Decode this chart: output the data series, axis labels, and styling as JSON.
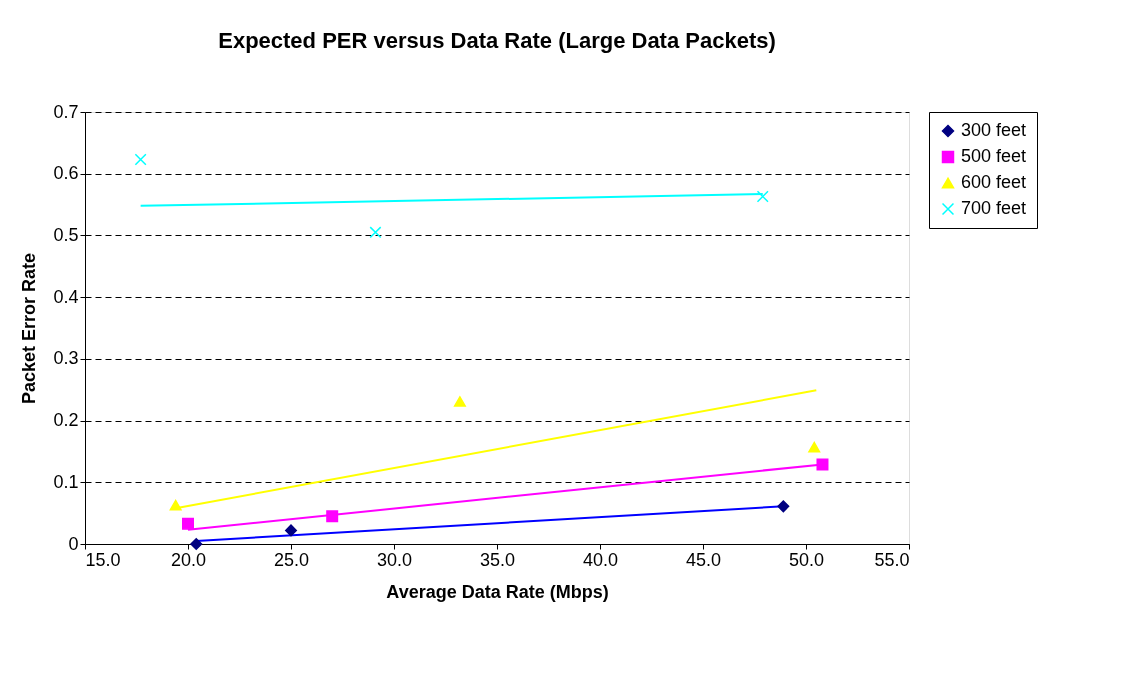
{
  "chart_data": {
    "type": "scatter",
    "title": "Expected PER versus Data Rate (Large Data Packets)",
    "xlabel": "Average Data Rate (Mbps)",
    "ylabel": "Packet Error Rate",
    "xlim": [
      15,
      55
    ],
    "xticks": [
      {
        "value": 15,
        "label": "15.0"
      },
      {
        "value": 20,
        "label": "20.0"
      },
      {
        "value": 25,
        "label": "25.0"
      },
      {
        "value": 30,
        "label": "30.0"
      },
      {
        "value": 35,
        "label": "35.0"
      },
      {
        "value": 40,
        "label": "40.0"
      },
      {
        "value": 45,
        "label": "45.0"
      },
      {
        "value": 50,
        "label": "50.0"
      },
      {
        "value": 55,
        "label": "55.0"
      }
    ],
    "ylim": [
      0,
      0.7
    ],
    "yticks": [
      0,
      0.1,
      0.2,
      0.3,
      0.4,
      0.5,
      0.6,
      0.7
    ],
    "grid": "y",
    "legend": "right",
    "series": [
      {
        "name": "300 feet",
        "color": "#000080",
        "marker": "diamond",
        "x": [
          20.4,
          25.0,
          48.9
        ],
        "values": [
          0.0,
          0.022,
          0.061
        ]
      },
      {
        "name": "500 feet",
        "color": "#ff00ff",
        "marker": "square",
        "x": [
          20.0,
          27.0,
          50.8
        ],
        "values": [
          0.033,
          0.045,
          0.129
        ]
      },
      {
        "name": "600 feet",
        "color": "#ffff00",
        "marker": "triangle",
        "x": [
          19.4,
          33.2,
          50.4
        ],
        "values": [
          0.063,
          0.231,
          0.157
        ]
      },
      {
        "name": "700 feet",
        "color": "#00ffff",
        "marker": "cross",
        "x": [
          17.7,
          29.1,
          47.9
        ],
        "values": [
          0.623,
          0.505,
          0.563
        ]
      },
      {
        "type": "line",
        "color": "#0000ff",
        "x": [
          20.4,
          48.9
        ],
        "values": [
          0.005,
          0.061
        ]
      },
      {
        "type": "line",
        "color": "#ff00ff",
        "x": [
          20.0,
          50.8
        ],
        "values": [
          0.023,
          0.129
        ]
      },
      {
        "type": "line",
        "color": "#ffff00",
        "x": [
          19.4,
          50.5
        ],
        "values": [
          0.058,
          0.249
        ]
      },
      {
        "type": "line",
        "color": "#00ffff",
        "x": [
          17.7,
          47.9
        ],
        "values": [
          0.548,
          0.567
        ]
      }
    ]
  }
}
